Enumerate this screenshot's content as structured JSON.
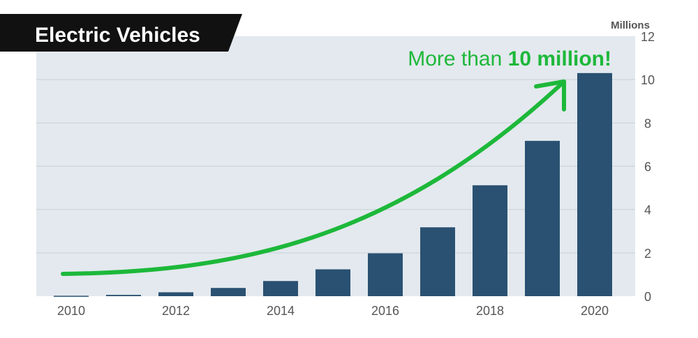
{
  "chart_data": {
    "type": "bar",
    "title": "Electric Vehicles",
    "unit_label": "Millions",
    "x": [
      2010,
      2011,
      2012,
      2013,
      2014,
      2015,
      2016,
      2017,
      2018,
      2019,
      2020
    ],
    "x_tick_labels": [
      "2010",
      "2012",
      "2014",
      "2016",
      "2018",
      "2020"
    ],
    "values": [
      0.02,
      0.06,
      0.18,
      0.38,
      0.7,
      1.24,
      1.98,
      3.18,
      5.12,
      7.17,
      10.3
    ],
    "ylim": [
      0,
      12
    ],
    "y_ticks": [
      0,
      2,
      4,
      6,
      8,
      10,
      12
    ],
    "y_axis_position": "right",
    "grid": true,
    "annotation": {
      "text_regular": "More than ",
      "text_bold": "10 million!"
    },
    "colors": {
      "bar": "#2a5172",
      "plot_background": "#e3e9ee",
      "gridline": "#c9d1d8",
      "accent": "#1db83a",
      "title_background": "#111111"
    }
  }
}
